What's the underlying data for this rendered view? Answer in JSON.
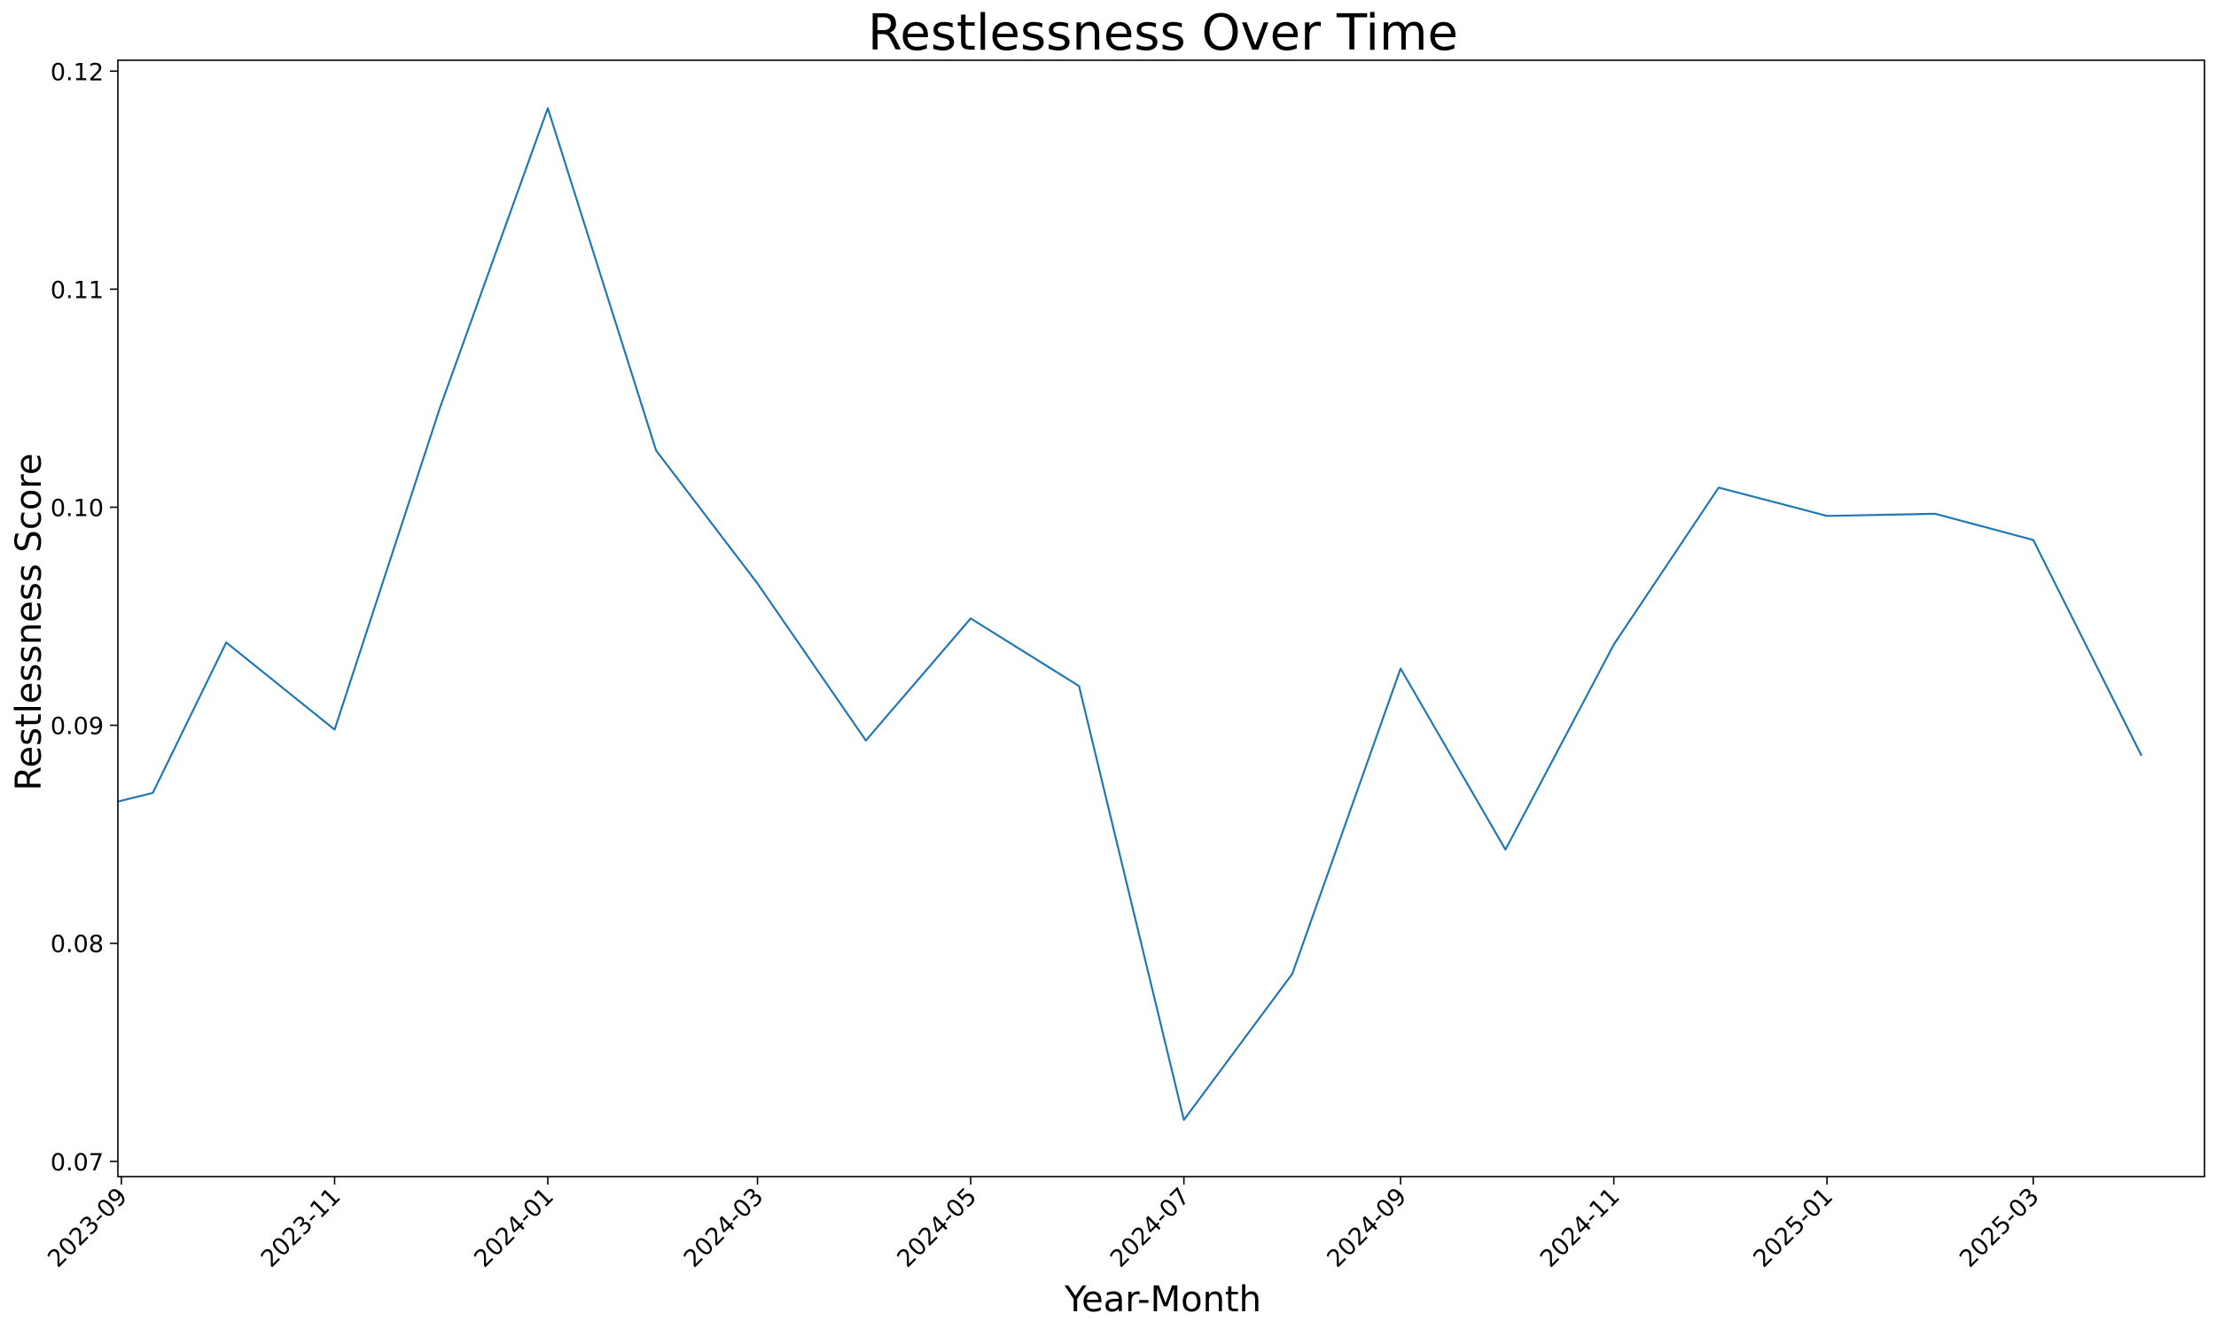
{
  "chart_data": {
    "type": "line",
    "title": "Restlessness Over Time",
    "xlabel": "Year-Month",
    "ylabel": "Restlessness Score",
    "ylim": [
      0.0693,
      0.1205
    ],
    "xlim": [
      "2023-08-31",
      "2025-04-19"
    ],
    "grid": false,
    "line_color": "#1f77b4",
    "x_ticks": [
      "2023-09",
      "2023-11",
      "2024-01",
      "2024-03",
      "2024-05",
      "2024-07",
      "2024-09",
      "2024-11",
      "2025-01",
      "2025-03"
    ],
    "y_ticks": [
      "0.07",
      "0.08",
      "0.09",
      "0.10",
      "0.11",
      "0.12"
    ],
    "x": [
      "2023-08-31",
      "2023-09-10",
      "2023-10-01",
      "2023-11-01",
      "2023-12-01",
      "2024-01-01",
      "2024-02-01",
      "2024-03-01",
      "2024-04-01",
      "2024-05-01",
      "2024-06-01",
      "2024-07-01",
      "2024-08-01",
      "2024-09-01",
      "2024-10-01",
      "2024-11-01",
      "2024-12-01",
      "2025-01-01",
      "2025-02-01",
      "2025-03-01",
      "2025-04-01"
    ],
    "values": [
      0.0865,
      0.0869,
      0.0938,
      0.0898,
      0.1045,
      0.1183,
      0.1026,
      0.0965,
      0.0893,
      0.0949,
      0.0918,
      0.0719,
      0.0786,
      0.0926,
      0.0843,
      0.0937,
      0.1009,
      0.0996,
      0.0997,
      0.0985,
      0.0886
    ]
  }
}
